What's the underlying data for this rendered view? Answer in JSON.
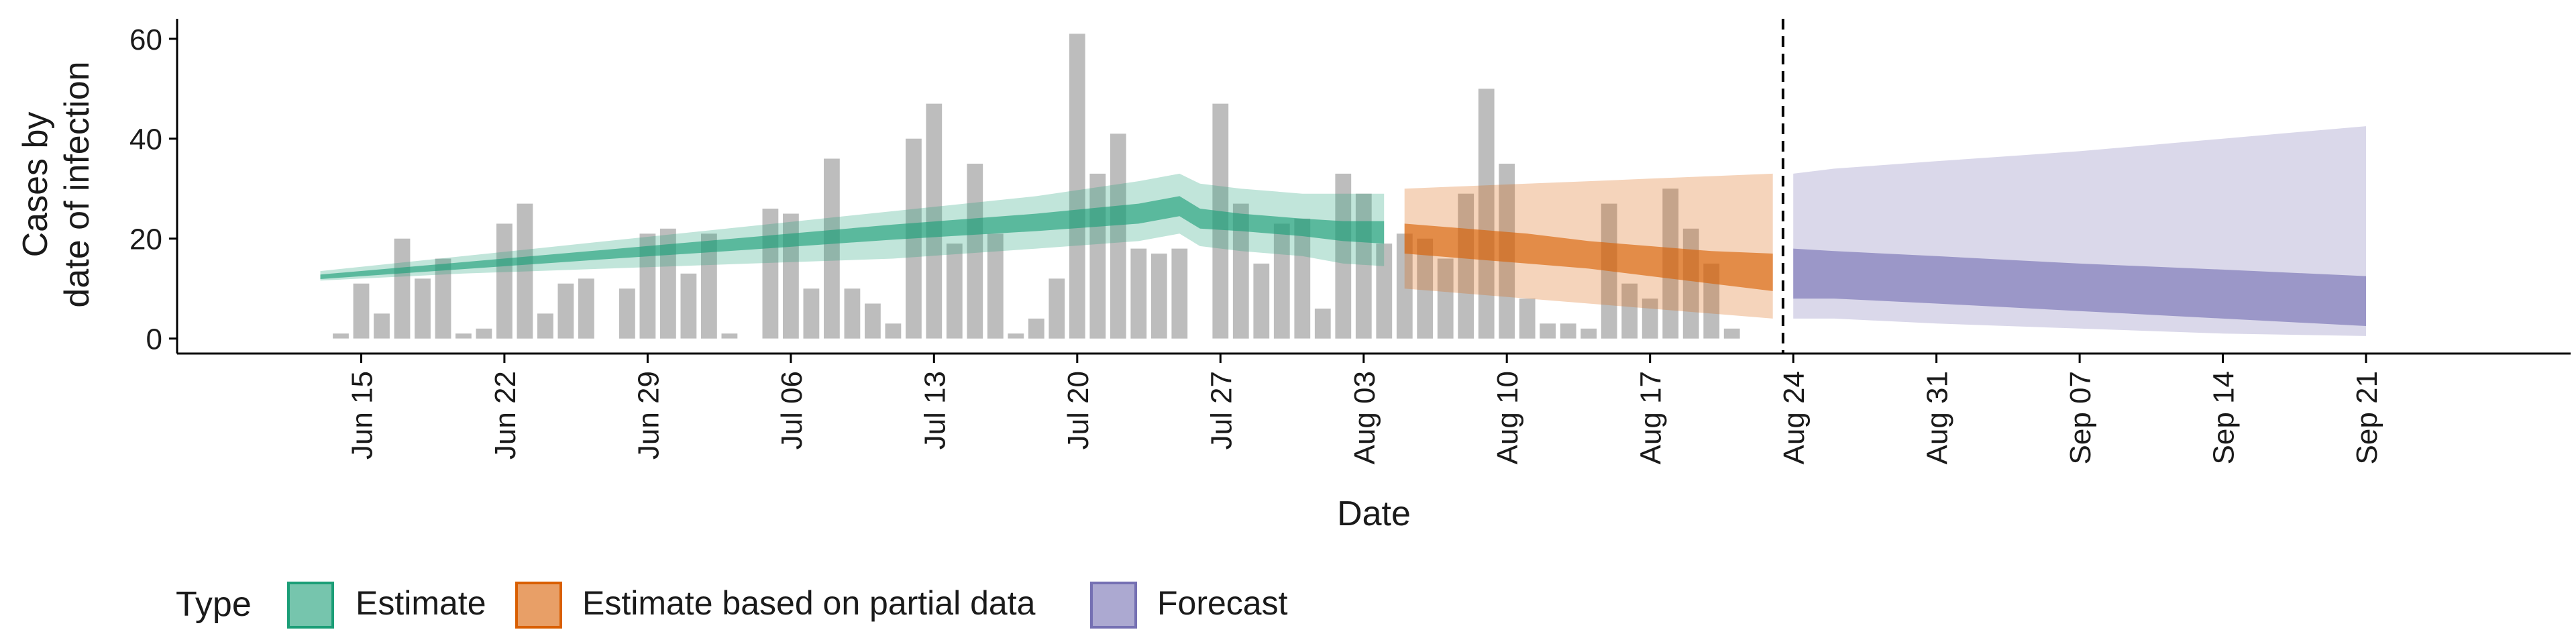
{
  "chart_data": {
    "type": "bar",
    "title": "",
    "xlabel": "Date",
    "ylabel_lines": [
      "Cases by",
      "date of infection"
    ],
    "x_tick_labels": [
      "Jun 15",
      "Jun 22",
      "Jun 29",
      "Jul 06",
      "Jul 13",
      "Jul 20",
      "Jul 27",
      "Aug 03",
      "Aug 10",
      "Aug 17",
      "Aug 24",
      "Aug 31",
      "Sep 07",
      "Sep 14",
      "Sep 21"
    ],
    "x_tick_dates": [
      "2020-06-15",
      "2020-06-22",
      "2020-06-29",
      "2020-07-06",
      "2020-07-13",
      "2020-07-20",
      "2020-07-27",
      "2020-08-03",
      "2020-08-10",
      "2020-08-17",
      "2020-08-24",
      "2020-08-31",
      "2020-09-07",
      "2020-09-14",
      "2020-09-21"
    ],
    "xlim": [
      "2020-06-06",
      "2020-10-01"
    ],
    "y_ticks": [
      0,
      20,
      40,
      60
    ],
    "ylim": [
      -3,
      64
    ],
    "grid": false,
    "legend_position": "bottom",
    "legend_title": "Type",
    "forecast_divider_date": "2020-08-23",
    "colors": {
      "bars": "#bdbdbd",
      "Estimate": "#1b9e77",
      "Estimate based on partial data": "#d95f02",
      "Forecast": "#7570b3",
      "divider": "#000000"
    },
    "bars": {
      "dates": [
        "2020-06-14",
        "2020-06-15",
        "2020-06-16",
        "2020-06-17",
        "2020-06-18",
        "2020-06-19",
        "2020-06-20",
        "2020-06-21",
        "2020-06-22",
        "2020-06-23",
        "2020-06-24",
        "2020-06-25",
        "2020-06-26",
        "2020-06-27",
        "2020-06-28",
        "2020-06-29",
        "2020-06-30",
        "2020-07-01",
        "2020-07-02",
        "2020-07-03",
        "2020-07-04",
        "2020-07-05",
        "2020-07-06",
        "2020-07-07",
        "2020-07-08",
        "2020-07-09",
        "2020-07-10",
        "2020-07-11",
        "2020-07-12",
        "2020-07-13",
        "2020-07-14",
        "2020-07-15",
        "2020-07-16",
        "2020-07-17",
        "2020-07-18",
        "2020-07-19",
        "2020-07-20",
        "2020-07-21",
        "2020-07-22",
        "2020-07-23",
        "2020-07-24",
        "2020-07-25",
        "2020-07-26",
        "2020-07-27",
        "2020-07-28",
        "2020-07-29",
        "2020-07-30",
        "2020-07-31",
        "2020-08-01",
        "2020-08-02",
        "2020-08-03",
        "2020-08-04",
        "2020-08-05",
        "2020-08-06",
        "2020-08-07",
        "2020-08-08",
        "2020-08-09",
        "2020-08-10",
        "2020-08-11",
        "2020-08-12",
        "2020-08-13",
        "2020-08-14",
        "2020-08-15",
        "2020-08-16",
        "2020-08-17",
        "2020-08-18",
        "2020-08-19",
        "2020-08-20",
        "2020-08-21",
        "2020-08-22",
        "2020-08-23"
      ],
      "values": [
        1,
        11,
        5,
        20,
        12,
        16,
        1,
        2,
        23,
        27,
        5,
        11,
        12,
        0,
        10,
        21,
        22,
        13,
        21,
        1,
        0,
        26,
        25,
        10,
        36,
        10,
        7,
        3,
        40,
        47,
        19,
        35,
        21,
        1,
        4,
        12,
        61,
        33,
        41,
        18,
        17,
        18,
        0,
        47,
        27,
        15,
        23,
        24,
        6,
        33,
        29,
        19,
        21,
        20,
        16,
        29,
        50,
        35,
        8,
        3,
        3,
        2,
        27,
        11,
        8,
        30,
        22,
        15,
        2,
        0,
        0
      ]
    },
    "series": [
      {
        "name": "Estimate",
        "dates": [
          "2020-06-13",
          "2020-06-20",
          "2020-06-27",
          "2020-07-04",
          "2020-07-11",
          "2020-07-18",
          "2020-07-23",
          "2020-07-25",
          "2020-07-26",
          "2020-07-28",
          "2020-07-31",
          "2020-08-02",
          "2020-08-04"
        ],
        "outer_upper": [
          13.5,
          16.5,
          19.5,
          22.5,
          25.5,
          28.5,
          31.5,
          33,
          31,
          30,
          29,
          29,
          29
        ],
        "inner_upper": [
          12.8,
          15.3,
          17.8,
          20.3,
          22.8,
          25,
          27,
          28.5,
          26,
          25,
          24,
          23.5,
          23.5
        ],
        "inner_lower": [
          11.9,
          13.9,
          15.9,
          17.8,
          19.8,
          21.5,
          23,
          24.5,
          22,
          21.5,
          20.5,
          19.5,
          19
        ],
        "outer_lower": [
          11.6,
          13,
          14,
          15,
          16,
          18,
          19.5,
          21,
          18.5,
          17.5,
          16.5,
          15,
          14.5
        ]
      },
      {
        "name": "Estimate based on partial data",
        "dates": [
          "2020-08-05",
          "2020-08-08",
          "2020-08-11",
          "2020-08-14",
          "2020-08-17",
          "2020-08-20",
          "2020-08-23"
        ],
        "outer_upper": [
          30,
          30.5,
          31,
          31.5,
          32,
          32.5,
          33
        ],
        "inner_upper": [
          23,
          22,
          21,
          19.5,
          18.5,
          17.5,
          17
        ],
        "inner_lower": [
          17,
          16,
          15,
          14,
          12.5,
          11,
          9.5
        ],
        "outer_lower": [
          10,
          9,
          8,
          7,
          6,
          5,
          4
        ]
      },
      {
        "name": "Forecast",
        "dates": [
          "2020-08-24",
          "2020-08-26",
          "2020-08-31",
          "2020-09-07",
          "2020-09-14",
          "2020-09-21"
        ],
        "outer_upper": [
          33,
          34,
          35.5,
          37.5,
          40,
          42.5
        ],
        "inner_upper": [
          18,
          17.5,
          16.5,
          15,
          13.8,
          12.5
        ],
        "inner_lower": [
          8,
          8,
          7,
          5.5,
          4,
          2.5
        ],
        "outer_lower": [
          4,
          4,
          3,
          2,
          1,
          0.5
        ]
      }
    ]
  }
}
